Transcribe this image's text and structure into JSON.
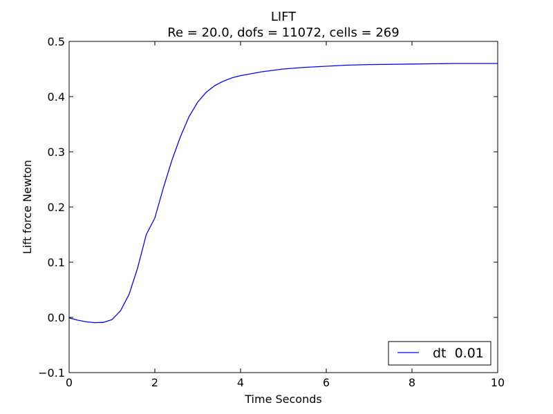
{
  "chart_data": {
    "type": "line",
    "title": "LIFT",
    "subtitle": "Re = 20.0, dofs = 11072, cells = 269",
    "xlabel": "Time Seconds",
    "ylabel": "Lift force Newton",
    "xlim": [
      0,
      10
    ],
    "ylim": [
      -0.1,
      0.5
    ],
    "xticks": [
      0,
      2,
      4,
      6,
      8,
      10
    ],
    "xtick_labels": [
      "0",
      "2",
      "4",
      "6",
      "8",
      "10"
    ],
    "yticks": [
      -0.1,
      0.0,
      0.1,
      0.2,
      0.3,
      0.4,
      0.5
    ],
    "ytick_labels": [
      "−0.1",
      "0.0",
      "0.1",
      "0.2",
      "0.3",
      "0.4",
      "0.5"
    ],
    "grid": false,
    "legend_position": "lower-right",
    "series": [
      {
        "name": "dt  0.01",
        "color": "#0000ff",
        "x": [
          0,
          0.2,
          0.4,
          0.6,
          0.8,
          1.0,
          1.2,
          1.4,
          1.6,
          1.8,
          2.0,
          2.2,
          2.4,
          2.6,
          2.8,
          3.0,
          3.2,
          3.4,
          3.6,
          3.8,
          4.0,
          4.5,
          5.0,
          5.5,
          6.0,
          6.5,
          7.0,
          8.0,
          9.0,
          10.0
        ],
        "y": [
          -0.001,
          -0.005,
          -0.008,
          -0.0095,
          -0.009,
          -0.004,
          0.012,
          0.042,
          0.09,
          0.15,
          0.18,
          0.235,
          0.285,
          0.328,
          0.364,
          0.39,
          0.408,
          0.42,
          0.428,
          0.434,
          0.438,
          0.445,
          0.45,
          0.453,
          0.455,
          0.457,
          0.458,
          0.459,
          0.46,
          0.46
        ]
      }
    ]
  }
}
